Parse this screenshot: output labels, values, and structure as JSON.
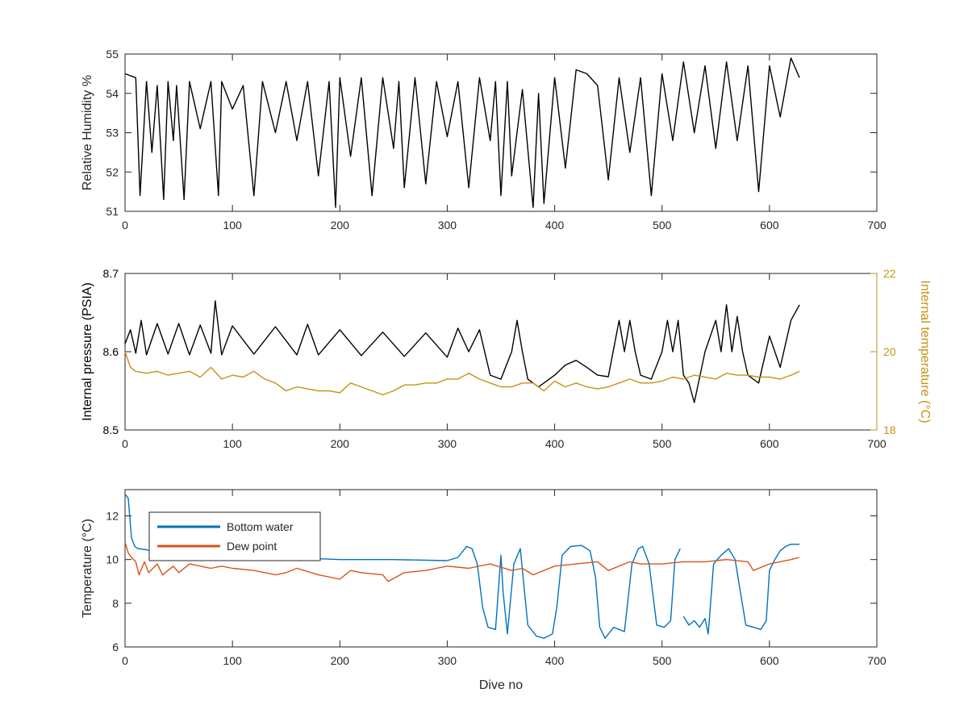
{
  "chart_data": [
    {
      "type": "line",
      "title": "",
      "xlabel": "",
      "ylabel": "Relative Humidity %",
      "xlim": [
        0,
        700
      ],
      "ylim": [
        51,
        55
      ],
      "xticks": [
        0,
        100,
        200,
        300,
        400,
        500,
        600,
        700
      ],
      "yticks": [
        51,
        52,
        53,
        54,
        55
      ],
      "grid": false,
      "series": [
        {
          "color": "#000000",
          "x": [
            0,
            10,
            14,
            20,
            25,
            30,
            36,
            40,
            45,
            48,
            55,
            60,
            70,
            80,
            87,
            90,
            100,
            110,
            120,
            128,
            140,
            150,
            160,
            170,
            180,
            190,
            196,
            200,
            210,
            220,
            230,
            240,
            250,
            255,
            260,
            270,
            280,
            290,
            300,
            310,
            320,
            330,
            340,
            345,
            350,
            356,
            360,
            370,
            380,
            385,
            390,
            400,
            410,
            420,
            430,
            440,
            450,
            460,
            470,
            480,
            490,
            500,
            510,
            520,
            530,
            540,
            550,
            560,
            570,
            580,
            590,
            600,
            610,
            620,
            628
          ],
          "values": [
            54.5,
            54.4,
            51.4,
            54.3,
            52.5,
            54.2,
            51.3,
            54.3,
            52.8,
            54.2,
            51.3,
            54.3,
            53.1,
            54.3,
            51.4,
            54.3,
            53.6,
            54.2,
            51.4,
            54.3,
            53.0,
            54.3,
            52.8,
            54.3,
            51.9,
            54.3,
            51.1,
            54.4,
            52.4,
            54.4,
            51.4,
            54.4,
            52.6,
            54.3,
            51.6,
            54.4,
            51.7,
            54.3,
            52.9,
            54.3,
            51.6,
            54.4,
            52.8,
            54.3,
            51.4,
            54.3,
            51.9,
            54.1,
            51.1,
            54.0,
            51.2,
            54.4,
            52.1,
            54.6,
            54.5,
            54.2,
            51.8,
            54.4,
            52.5,
            54.4,
            51.4,
            54.5,
            52.8,
            54.8,
            53.0,
            54.7,
            52.6,
            54.8,
            52.8,
            54.7,
            51.5,
            54.7,
            53.4,
            54.9,
            54.4
          ]
        }
      ]
    },
    {
      "type": "line",
      "title": "",
      "xlabel": "",
      "ylabel": "Internal pressure (PSIA)",
      "ylabel_right": "Internal temperature (°C)",
      "xlim": [
        0,
        700
      ],
      "ylim": [
        8.5,
        8.7
      ],
      "ylim_right": [
        18,
        22
      ],
      "xticks": [
        0,
        100,
        200,
        300,
        400,
        500,
        600,
        700
      ],
      "yticks": [
        8.5,
        8.6,
        8.7
      ],
      "yticks_right": [
        18,
        20,
        22
      ],
      "grid": false,
      "series": [
        {
          "axis": "left",
          "color": "#000000",
          "x": [
            0,
            5,
            10,
            15,
            20,
            30,
            40,
            50,
            60,
            70,
            80,
            84,
            90,
            100,
            120,
            140,
            160,
            170,
            180,
            200,
            220,
            240,
            260,
            280,
            300,
            310,
            320,
            330,
            340,
            350,
            360,
            365,
            370,
            375,
            380,
            385,
            390,
            400,
            410,
            420,
            430,
            440,
            450,
            460,
            465,
            470,
            475,
            480,
            490,
            500,
            505,
            510,
            515,
            520,
            525,
            530,
            540,
            550,
            555,
            560,
            565,
            570,
            575,
            580,
            590,
            600,
            610,
            620,
            628
          ],
          "values": [
            8.61,
            8.628,
            8.598,
            8.64,
            8.596,
            8.636,
            8.597,
            8.636,
            8.596,
            8.634,
            8.598,
            8.665,
            8.596,
            8.633,
            8.597,
            8.632,
            8.596,
            8.635,
            8.596,
            8.628,
            8.595,
            8.625,
            8.594,
            8.624,
            8.593,
            8.63,
            8.6,
            8.628,
            8.57,
            8.565,
            8.6,
            8.64,
            8.6,
            8.565,
            8.56,
            8.555,
            8.56,
            8.57,
            8.583,
            8.589,
            8.58,
            8.57,
            8.568,
            8.64,
            8.6,
            8.64,
            8.6,
            8.57,
            8.565,
            8.6,
            8.64,
            8.6,
            8.64,
            8.57,
            8.56,
            8.535,
            8.6,
            8.64,
            8.6,
            8.66,
            8.6,
            8.645,
            8.6,
            8.57,
            8.56,
            8.62,
            8.58,
            8.64,
            8.66
          ]
        },
        {
          "axis": "right",
          "color": "#C89216",
          "x": [
            0,
            5,
            10,
            20,
            30,
            40,
            50,
            60,
            70,
            80,
            90,
            100,
            110,
            120,
            130,
            140,
            150,
            160,
            170,
            180,
            190,
            200,
            210,
            220,
            230,
            240,
            250,
            260,
            270,
            280,
            290,
            300,
            310,
            320,
            330,
            340,
            350,
            360,
            370,
            380,
            390,
            400,
            410,
            420,
            430,
            440,
            450,
            460,
            470,
            480,
            490,
            500,
            510,
            520,
            530,
            540,
            550,
            560,
            570,
            580,
            590,
            600,
            610,
            620,
            628
          ],
          "values": [
            20.0,
            19.6,
            19.5,
            19.45,
            19.5,
            19.4,
            19.45,
            19.5,
            19.35,
            19.6,
            19.3,
            19.4,
            19.35,
            19.5,
            19.3,
            19.2,
            19.0,
            19.1,
            19.05,
            19.0,
            19.0,
            18.95,
            19.2,
            19.1,
            19.0,
            18.9,
            19.0,
            19.15,
            19.15,
            19.2,
            19.2,
            19.3,
            19.3,
            19.45,
            19.3,
            19.2,
            19.1,
            19.1,
            19.2,
            19.2,
            19.0,
            19.25,
            19.1,
            19.2,
            19.1,
            19.05,
            19.1,
            19.2,
            19.3,
            19.2,
            19.2,
            19.25,
            19.35,
            19.3,
            19.4,
            19.35,
            19.3,
            19.45,
            19.4,
            19.4,
            19.35,
            19.35,
            19.3,
            19.4,
            19.5
          ]
        }
      ]
    },
    {
      "type": "line",
      "title": "",
      "xlabel": "Dive no",
      "ylabel": "Temperature (°C)",
      "xlim": [
        0,
        700
      ],
      "ylim": [
        6,
        13.2
      ],
      "xticks": [
        0,
        100,
        200,
        300,
        400,
        500,
        600,
        700
      ],
      "yticks": [
        6,
        8,
        10,
        12
      ],
      "grid": false,
      "legend": "top-left",
      "series": [
        {
          "name": "Bottom water",
          "color": "#0072BD",
          "x": [
            0,
            3,
            6,
            9,
            12,
            20,
            30,
            50,
            100,
            150,
            200,
            250,
            300,
            310,
            318,
            323,
            328,
            333,
            338,
            345,
            350,
            352,
            356,
            362,
            368,
            375,
            383,
            390,
            398,
            402,
            407,
            415,
            425,
            433,
            438,
            442,
            447,
            455,
            465,
            472,
            478,
            482,
            488,
            495,
            502,
            508,
            512,
            517
          ],
          "values": [
            13.0,
            12.8,
            11.0,
            10.6,
            10.5,
            10.45,
            10.3,
            10.3,
            10.2,
            10.1,
            10.0,
            10.0,
            9.95,
            10.1,
            10.6,
            10.5,
            9.8,
            7.8,
            6.9,
            6.8,
            10.2,
            8.5,
            6.6,
            9.8,
            10.5,
            7.0,
            6.5,
            6.4,
            6.6,
            7.8,
            10.2,
            10.6,
            10.65,
            10.4,
            9.2,
            6.9,
            6.4,
            6.9,
            6.7,
            9.8,
            10.5,
            10.6,
            9.8,
            7.0,
            6.9,
            7.2,
            10.0,
            10.5
          ],
          "x2": [
            520,
            525,
            530,
            535,
            540,
            543,
            548,
            555,
            562,
            568,
            572,
            578,
            585,
            592,
            597,
            600,
            605,
            610,
            615,
            620,
            628
          ],
          "values2": [
            7.4,
            7.0,
            7.2,
            6.9,
            7.3,
            6.6,
            9.8,
            10.2,
            10.5,
            10.0,
            8.8,
            7.0,
            6.9,
            6.8,
            7.2,
            9.5,
            10.0,
            10.4,
            10.6,
            10.7,
            10.7
          ]
        },
        {
          "name": "Dew point",
          "color": "#D95319",
          "x": [
            0,
            3,
            6,
            10,
            13,
            18,
            22,
            30,
            35,
            45,
            50,
            60,
            80,
            90,
            100,
            120,
            140,
            150,
            160,
            180,
            200,
            210,
            220,
            240,
            245,
            260,
            280,
            300,
            320,
            340,
            360,
            370,
            380,
            400,
            420,
            440,
            450,
            470,
            480,
            500,
            520,
            540,
            560,
            580,
            585,
            600,
            620,
            628
          ],
          "values": [
            10.8,
            10.3,
            10.1,
            9.9,
            9.3,
            9.9,
            9.4,
            9.8,
            9.3,
            9.7,
            9.4,
            9.8,
            9.6,
            9.7,
            9.6,
            9.5,
            9.3,
            9.4,
            9.6,
            9.3,
            9.1,
            9.5,
            9.4,
            9.3,
            9.0,
            9.4,
            9.5,
            9.7,
            9.6,
            9.8,
            9.5,
            9.6,
            9.3,
            9.7,
            9.8,
            9.9,
            9.5,
            9.9,
            9.8,
            9.8,
            9.9,
            9.9,
            10.0,
            9.9,
            9.5,
            9.8,
            10.0,
            10.1
          ]
        }
      ]
    }
  ]
}
